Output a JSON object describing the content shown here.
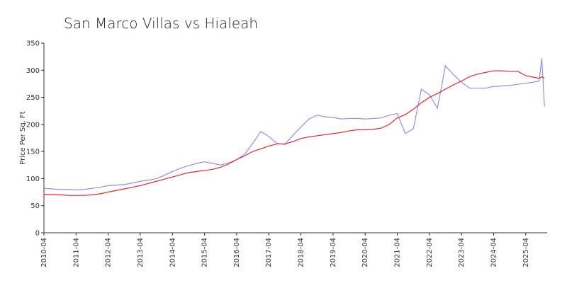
{
  "chart_data": {
    "type": "line",
    "title": "San Marco Villas vs Hialeah",
    "ylabel": "Price Per Sq. Ft",
    "x": [
      "2010-04",
      "2010-07",
      "2010-10",
      "2011-01",
      "2011-04",
      "2011-07",
      "2011-10",
      "2012-01",
      "2012-04",
      "2012-07",
      "2012-10",
      "2013-01",
      "2013-04",
      "2013-07",
      "2013-10",
      "2014-01",
      "2014-04",
      "2014-07",
      "2014-10",
      "2015-01",
      "2015-04",
      "2015-07",
      "2015-10",
      "2016-01",
      "2016-04",
      "2016-07",
      "2016-10",
      "2017-01",
      "2017-04",
      "2017-07",
      "2017-10",
      "2018-01",
      "2018-04",
      "2018-07",
      "2018-10",
      "2019-01",
      "2019-04",
      "2019-07",
      "2019-10",
      "2020-01",
      "2020-04",
      "2020-07",
      "2020-10",
      "2021-01",
      "2021-04",
      "2021-07",
      "2021-10",
      "2022-01",
      "2022-04",
      "2022-07",
      "2022-10",
      "2023-01",
      "2023-04",
      "2023-07",
      "2023-10",
      "2024-01",
      "2024-04",
      "2024-07",
      "2024-10",
      "2025-01",
      "2025-04",
      "2025-07",
      "2025-09",
      "2025-10",
      "2025-11"
    ],
    "series": [
      {
        "color": "#8f8ff0",
        "values": [
          82,
          81,
          80,
          80,
          79,
          80,
          82,
          84,
          87,
          88,
          89,
          92,
          95,
          97,
          100,
          106,
          113,
          119,
          124,
          128,
          131,
          128,
          125,
          129,
          135,
          145,
          165,
          187,
          178,
          165,
          163,
          180,
          195,
          210,
          217,
          214,
          213,
          210,
          211,
          211,
          210,
          211,
          212,
          217,
          220,
          183,
          192,
          265,
          255,
          230,
          308,
          292,
          278,
          267,
          267,
          267,
          270,
          271,
          272,
          274,
          276,
          278,
          280,
          322,
          233
        ]
      },
      {
        "color": "#e8262a",
        "values": [
          71,
          70,
          70,
          69,
          69,
          69,
          70,
          72,
          75,
          78,
          81,
          84,
          87,
          91,
          95,
          99,
          103,
          107,
          111,
          113,
          115,
          117,
          121,
          127,
          135,
          142,
          150,
          155,
          160,
          164,
          164,
          168,
          174,
          177,
          179,
          181,
          183,
          185,
          188,
          190,
          190,
          191,
          193,
          200,
          212,
          218,
          228,
          240,
          250,
          257,
          265,
          273,
          280,
          288,
          293,
          296,
          299,
          299,
          298,
          298,
          290,
          287,
          285,
          288,
          285
        ]
      }
    ],
    "xlim": [
      "2010-04",
      "2025-12"
    ],
    "xticks": [
      "2010-04",
      "2011-04",
      "2012-04",
      "2013-04",
      "2014-04",
      "2015-04",
      "2016-04",
      "2017-04",
      "2018-04",
      "2019-04",
      "2020-04",
      "2021-04",
      "2022-04",
      "2023-04",
      "2024-04",
      "2025-04"
    ],
    "ylim": [
      0,
      350
    ],
    "yticks": [
      0,
      50,
      100,
      150,
      200,
      250,
      300,
      350
    ],
    "grid": false
  }
}
